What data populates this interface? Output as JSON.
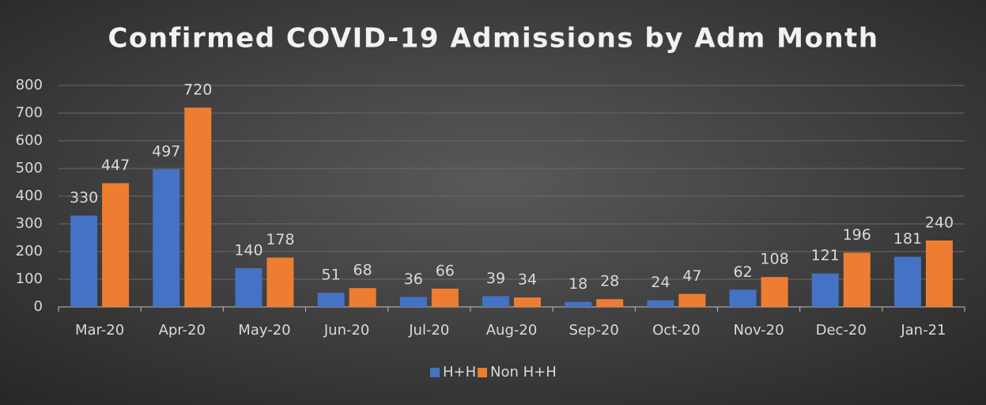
{
  "chart_data": {
    "type": "bar",
    "title": "Confirmed COVID-19 Admissions by Adm Month",
    "categories": [
      "Mar-20",
      "Apr-20",
      "May-20",
      "Jun-20",
      "Jul-20",
      "Aug-20",
      "Sep-20",
      "Oct-20",
      "Nov-20",
      "Dec-20",
      "Jan-21"
    ],
    "series": [
      {
        "name": "H+H",
        "color": "#4472c4",
        "values": [
          330,
          497,
          140,
          51,
          36,
          39,
          18,
          24,
          62,
          121,
          181
        ]
      },
      {
        "name": "Non H+H",
        "color": "#ed7d31",
        "values": [
          447,
          720,
          178,
          68,
          66,
          34,
          28,
          47,
          108,
          196,
          240
        ]
      }
    ],
    "ylim": [
      0,
      800
    ],
    "yticks": [
      0,
      100,
      200,
      300,
      400,
      500,
      600,
      700,
      800
    ],
    "grid": true,
    "legend": "bottom"
  }
}
